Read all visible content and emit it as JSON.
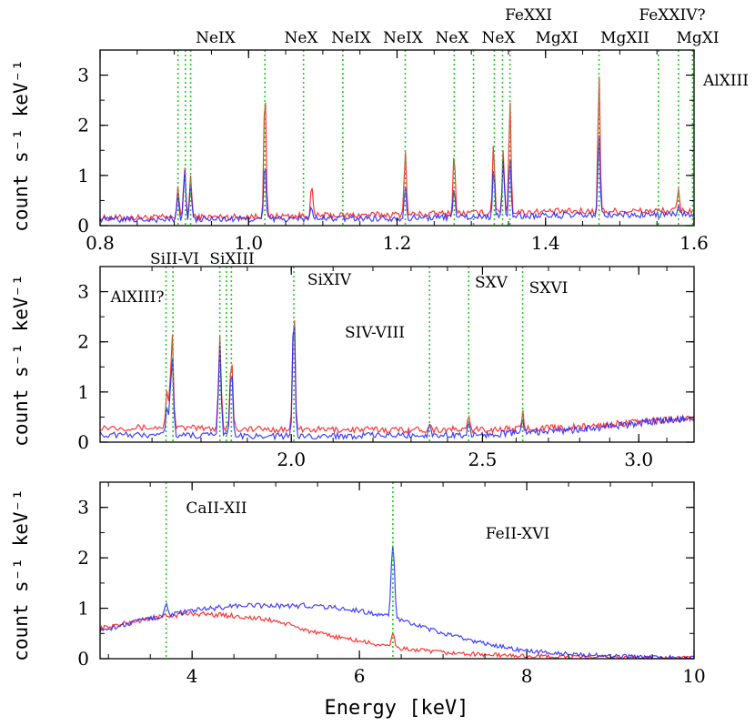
{
  "chart_data": [
    {
      "type": "line",
      "panel": "top",
      "xlim": [
        0.8,
        1.6
      ],
      "ylim": [
        0,
        3.5
      ],
      "ylabel": "count s⁻¹ keV⁻¹",
      "x_ticks": [
        0.8,
        1.0,
        1.2,
        1.4,
        1.6
      ],
      "x_tick_labels": [
        "0.8",
        "1.0",
        "1.2",
        "1.4",
        "1.6"
      ],
      "y_ticks": [
        0,
        1,
        2,
        3
      ],
      "y_tick_labels": [
        "0",
        "1",
        "2",
        "3"
      ],
      "continuum": {
        "x": [
          0.8,
          1.0,
          1.2,
          1.4,
          1.6
        ],
        "red": [
          0.15,
          0.18,
          0.22,
          0.28,
          0.3
        ],
        "blue": [
          0.12,
          0.13,
          0.15,
          0.2,
          0.22
        ]
      },
      "peaks": {
        "x": [
          0.905,
          0.914,
          0.922,
          1.022,
          1.085,
          1.211,
          1.277,
          1.33,
          1.343,
          1.352,
          1.472,
          1.579
        ],
        "red": [
          0.8,
          1.2,
          1.0,
          2.9,
          0.8,
          1.6,
          1.5,
          1.7,
          1.5,
          2.6,
          3.1,
          0.7
        ],
        "blue": [
          0.6,
          1.2,
          0.8,
          1.3,
          0.4,
          0.8,
          0.8,
          1.2,
          1.3,
          1.4,
          1.9,
          0.4
        ]
      },
      "lines": [
        {
          "x": 0.905,
          "label": ""
        },
        {
          "x": 0.915,
          "label": "NeIX"
        },
        {
          "x": 0.922,
          "label": ""
        },
        {
          "x": 1.022,
          "label": "NeX"
        },
        {
          "x": 1.074,
          "label": "NeIX"
        },
        {
          "x": 1.127,
          "label": "NeIX"
        },
        {
          "x": 1.211,
          "label": "NeX"
        },
        {
          "x": 1.277,
          "label": "NeX"
        },
        {
          "x": 1.303,
          "label": "FeXXI"
        },
        {
          "x": 1.331,
          "label": ""
        },
        {
          "x": 1.342,
          "label": "MgXI"
        },
        {
          "x": 1.352,
          "label": ""
        },
        {
          "x": 1.472,
          "label": "MgXII"
        },
        {
          "x": 1.552,
          "label": "FeXXIV?"
        },
        {
          "x": 1.579,
          "label": "MgXI"
        },
        {
          "x": 1.598,
          "label": "AlXIII"
        }
      ]
    },
    {
      "type": "line",
      "panel": "middle",
      "x_scale": "log",
      "xlim": [
        1.6,
        3.2
      ],
      "ylim": [
        0,
        3.5
      ],
      "ylabel": "count s⁻¹ keV⁻¹",
      "x_ticks": [
        2.0,
        2.5,
        3.0
      ],
      "x_tick_labels": [
        "2.0",
        "2.5",
        "3.0"
      ],
      "y_ticks": [
        0,
        1,
        2,
        3
      ],
      "y_tick_labels": [
        "0",
        "1",
        "2",
        "3"
      ],
      "continuum": {
        "x": [
          1.6,
          2.0,
          2.5,
          2.8,
          3.2
        ],
        "red": [
          0.3,
          0.25,
          0.25,
          0.3,
          0.5
        ],
        "blue": [
          0.15,
          0.12,
          0.15,
          0.25,
          0.5
        ]
      },
      "peaks": {
        "x": [
          1.73,
          1.74,
          1.84,
          1.865,
          2.006,
          2.35,
          2.46,
          2.62
        ],
        "red": [
          1.0,
          2.2,
          2.1,
          1.8,
          2.7,
          0.4,
          0.5,
          0.6
        ],
        "blue": [
          0.7,
          1.7,
          1.9,
          1.6,
          2.7,
          0.35,
          0.4,
          0.5
        ]
      },
      "lines": [
        {
          "x": 1.728,
          "label": "AlXIII?"
        },
        {
          "x": 1.742,
          "label": "SiII-VI"
        },
        {
          "x": 1.84,
          "label": "SiXIII"
        },
        {
          "x": 1.854,
          "label": ""
        },
        {
          "x": 1.865,
          "label": ""
        },
        {
          "x": 2.006,
          "label": "SiXIV"
        },
        {
          "x": 2.35,
          "label": "SIV-VIII"
        },
        {
          "x": 2.46,
          "label": "SXV"
        },
        {
          "x": 2.62,
          "label": "SXVI"
        }
      ]
    },
    {
      "type": "line",
      "panel": "bottom",
      "xlim": [
        2.9,
        10
      ],
      "ylim": [
        0,
        3.5
      ],
      "ylabel": "count s⁻¹ keV⁻¹",
      "xlabel": "Energy [keV]",
      "x_ticks": [
        4,
        6,
        8,
        10
      ],
      "x_tick_labels": [
        "4",
        "6",
        "8",
        "10"
      ],
      "y_ticks": [
        0,
        1,
        2,
        3
      ],
      "y_tick_labels": [
        "0",
        "1",
        "2",
        "3"
      ],
      "continuum": {
        "x": [
          2.9,
          3.5,
          4.0,
          4.5,
          5.0,
          5.5,
          6.0,
          6.3,
          6.5,
          7.0,
          7.5,
          8.0,
          9.0,
          10.0
        ],
        "red": [
          0.6,
          0.8,
          0.9,
          0.85,
          0.75,
          0.5,
          0.35,
          0.25,
          0.2,
          0.12,
          0.08,
          0.05,
          0.02,
          0.01
        ],
        "blue": [
          0.55,
          0.8,
          0.95,
          1.05,
          1.05,
          1.05,
          0.95,
          0.85,
          0.75,
          0.5,
          0.3,
          0.15,
          0.05,
          0.02
        ]
      },
      "peaks": {
        "x": [
          3.69,
          6.4
        ],
        "red": [
          0.85,
          0.5
        ],
        "blue": [
          1.1,
          2.3
        ]
      },
      "lines": [
        {
          "x": 3.69,
          "label": "CaII-XII"
        },
        {
          "x": 6.4,
          "label": "FeII-XVI"
        }
      ]
    }
  ]
}
